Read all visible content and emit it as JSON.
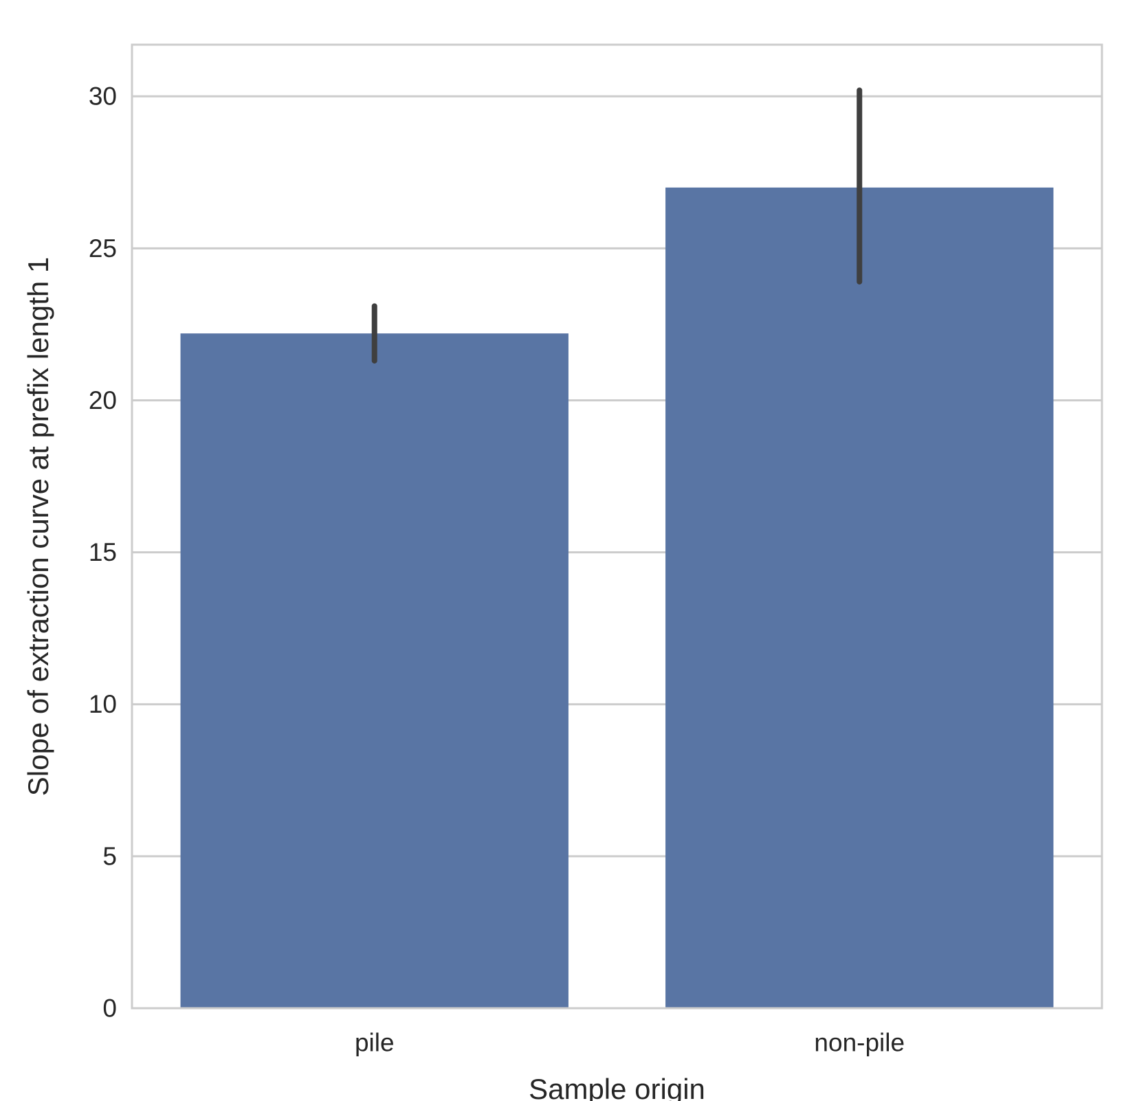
{
  "chart_data": {
    "type": "bar",
    "categories": [
      "pile",
      "non-pile"
    ],
    "values": [
      22.2,
      27.0
    ],
    "error_bars": [
      {
        "low": 21.3,
        "high": 23.1
      },
      {
        "low": 23.9,
        "high": 30.2
      }
    ],
    "xlabel": "Sample origin",
    "ylabel": "Slope of extraction curve at prefix length 1",
    "ylim": [
      0,
      31.7
    ],
    "yticks": [
      0,
      5,
      10,
      15,
      20,
      25,
      30
    ],
    "ytick_labels": [
      "0",
      "5",
      "10",
      "15",
      "20",
      "25",
      "30"
    ],
    "grid": "horizontal",
    "colors": {
      "bar": "#5975a4",
      "error_bar": "#3f3f3f",
      "grid": "#cccccc",
      "spine": "#cccccc",
      "text": "#262626"
    }
  }
}
